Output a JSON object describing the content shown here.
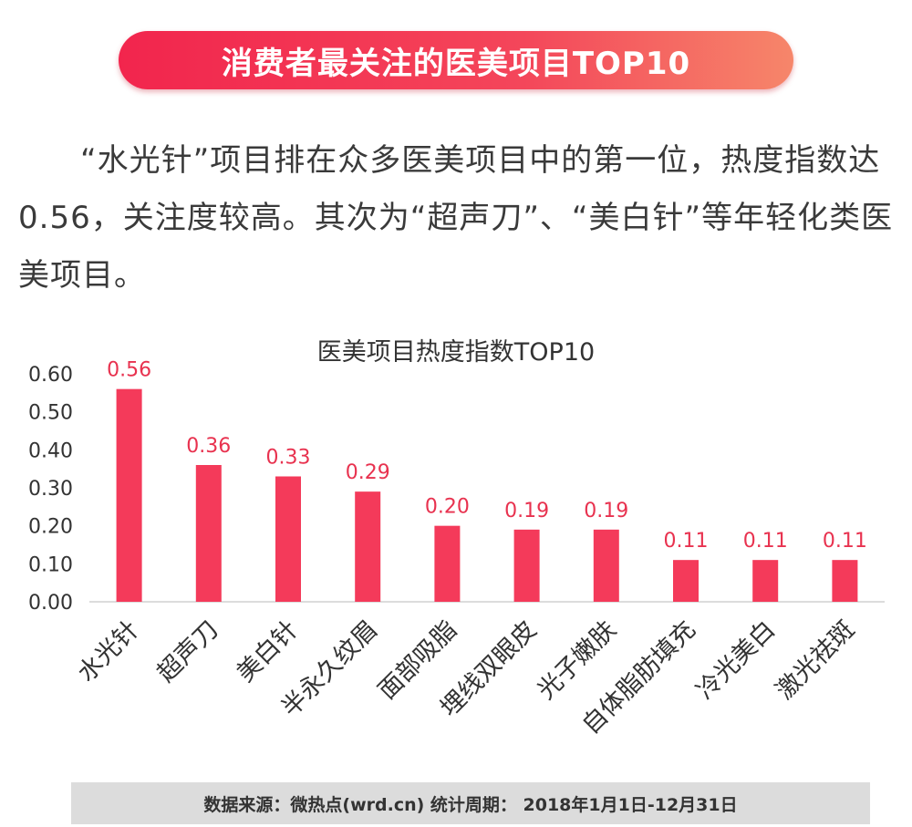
{
  "banner": {
    "title": "消费者最关注的医美项目TOP10"
  },
  "intro": {
    "text": "“水光针”项目排在众多医美项目中的第一位，热度指数达0.56，关注度较高。其次为“超声刀”、“美白针”等年轻化类医美项目。"
  },
  "source": {
    "text": "数据来源：微热点(wrd.cn)  统计周期： 2018年1月1日-12月31日"
  },
  "colors": {
    "bar": "#f43a5a",
    "label": "#e8324f",
    "banner_start": "#f2254d",
    "banner_end": "#f6866a"
  },
  "chart_data": {
    "type": "bar",
    "title": "医美项目热度指数TOP10",
    "categories": [
      "水光针",
      "超声刀",
      "美白针",
      "半永久纹眉",
      "面部吸脂",
      "埋线双眼皮",
      "光子嫩肤",
      "自体脂肪填充",
      "冷光美白",
      "激光祛斑"
    ],
    "values": [
      0.56,
      0.36,
      0.33,
      0.29,
      0.2,
      0.19,
      0.19,
      0.11,
      0.11,
      0.11
    ],
    "value_labels": [
      "0.56",
      "0.36",
      "0.33",
      "0.29",
      "0.20",
      "0.19",
      "0.19",
      "0.11",
      "0.11",
      "0.11"
    ],
    "ylim": [
      0,
      0.6
    ],
    "yticks": [
      "0.00",
      "0.10",
      "0.20",
      "0.30",
      "0.40",
      "0.50",
      "0.60"
    ],
    "grid": false,
    "legend": "none"
  }
}
